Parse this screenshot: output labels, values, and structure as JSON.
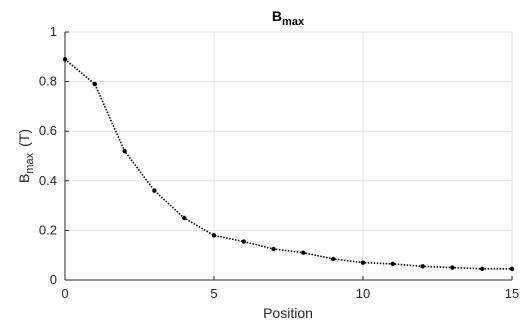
{
  "chart_data": {
    "type": "line",
    "title": "B",
    "title_subscript": "max",
    "xlabel": "Position",
    "ylabel_main": "B",
    "ylabel_subscript": "max",
    "ylabel_unit": "(T)",
    "xlim": [
      0,
      15
    ],
    "ylim": [
      0,
      1
    ],
    "x_ticks": [
      0,
      5,
      10,
      15
    ],
    "x_tick_labels": [
      "0",
      "5",
      "10",
      "15"
    ],
    "y_ticks": [
      0,
      0.2,
      0.4,
      0.6,
      0.8,
      1
    ],
    "y_tick_labels": [
      "0",
      "0.2",
      "0.4",
      "0.6",
      "0.8",
      "1"
    ],
    "grid": true,
    "line_style": "dotted",
    "marker": "dot",
    "line_color": "#000000",
    "grid_color": "#e0e0e0",
    "series": [
      {
        "x": [
          0,
          1,
          2,
          3,
          4,
          5,
          6,
          7,
          8,
          9,
          10,
          11,
          12,
          13,
          14,
          15
        ],
        "y": [
          0.89,
          0.79,
          0.52,
          0.36,
          0.25,
          0.18,
          0.155,
          0.125,
          0.11,
          0.085,
          0.07,
          0.065,
          0.055,
          0.05,
          0.045,
          0.045
        ]
      }
    ]
  }
}
